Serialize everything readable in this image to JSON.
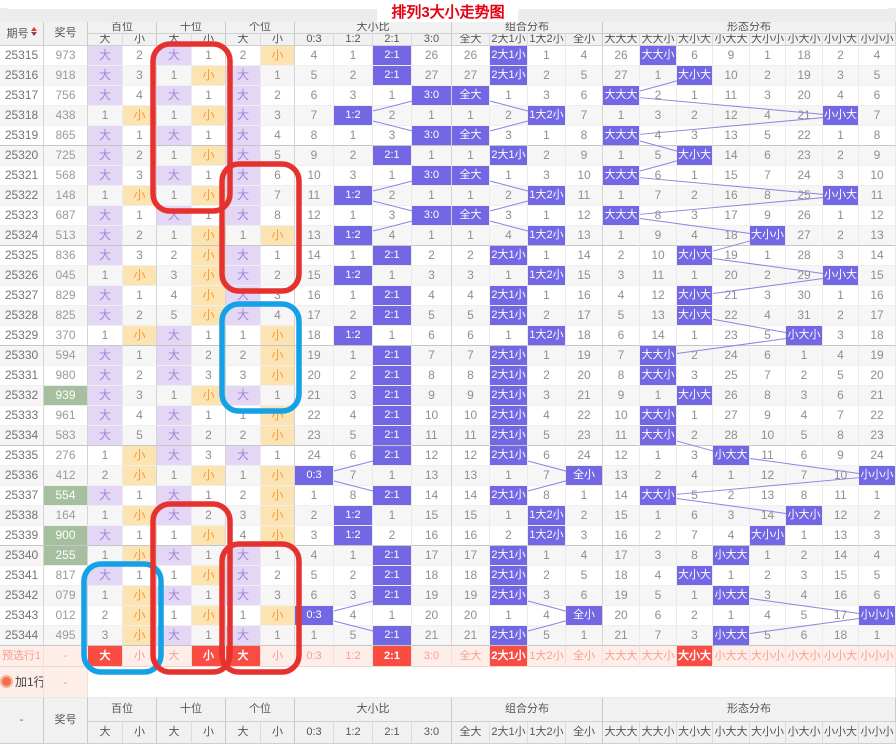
{
  "title": "排列3大小走势图",
  "table": {
    "corner_label": "期号",
    "number_label": "奖号",
    "footer_corner_label": "-",
    "groups": [
      {
        "label": "百位",
        "span": 2
      },
      {
        "label": "十位",
        "span": 2
      },
      {
        "label": "个位",
        "span": 2
      },
      {
        "label": "大小比",
        "span": 4
      },
      {
        "label": "组合分布",
        "span": 4
      },
      {
        "label": "形态分布",
        "span": 8
      }
    ],
    "sub_columns": [
      "大",
      "小",
      "大",
      "小",
      "大",
      "小",
      "0:3",
      "1:2",
      "2:1",
      "3:0",
      "全大",
      "2大1小",
      "1大2小",
      "全小",
      "大大大",
      "大大小",
      "大小大",
      "小大大",
      "大小小",
      "小大小",
      "小小大",
      "小小小"
    ],
    "rows": [
      {
        "issue": "25315",
        "number": "973",
        "green": false,
        "cells": [
          "大",
          "2",
          "大",
          "1",
          "2",
          "小",
          "4",
          "1",
          "2:1",
          "26",
          "26",
          "2大1小",
          "1",
          "4",
          "26",
          "大大小",
          "6",
          "9",
          "1",
          "18",
          "2",
          "4"
        ]
      },
      {
        "issue": "25316",
        "number": "918",
        "green": false,
        "cells": [
          "大",
          "3",
          "1",
          "小",
          "大",
          "1",
          "5",
          "2",
          "2:1",
          "27",
          "27",
          "2大1小",
          "2",
          "5",
          "27",
          "1",
          "大小大",
          "10",
          "2",
          "19",
          "3",
          "5"
        ]
      },
      {
        "issue": "25317",
        "number": "756",
        "green": false,
        "cells": [
          "大",
          "4",
          "大",
          "1",
          "大",
          "2",
          "6",
          "3",
          "1",
          "3:0",
          "全大",
          "1",
          "3",
          "6",
          "大大大",
          "2",
          "1",
          "11",
          "3",
          "20",
          "4",
          "6"
        ]
      },
      {
        "issue": "25318",
        "number": "438",
        "green": false,
        "cells": [
          "1",
          "小",
          "1",
          "小",
          "大",
          "3",
          "7",
          "1:2",
          "2",
          "1",
          "1",
          "2",
          "1大2小",
          "7",
          "1",
          "3",
          "2",
          "12",
          "4",
          "21",
          "小小大",
          "7"
        ]
      },
      {
        "issue": "25319",
        "number": "865",
        "green": false,
        "cells": [
          "大",
          "1",
          "大",
          "1",
          "大",
          "4",
          "8",
          "1",
          "3",
          "3:0",
          "全大",
          "3",
          "1",
          "8",
          "大大大",
          "4",
          "3",
          "13",
          "5",
          "22",
          "1",
          "8"
        ]
      },
      {
        "issue": "25320",
        "number": "725",
        "green": false,
        "cells": [
          "大",
          "2",
          "1",
          "小",
          "大",
          "5",
          "9",
          "2",
          "2:1",
          "1",
          "1",
          "2大1小",
          "2",
          "9",
          "1",
          "5",
          "大小大",
          "14",
          "6",
          "23",
          "2",
          "9"
        ]
      },
      {
        "issue": "25321",
        "number": "568",
        "green": false,
        "cells": [
          "大",
          "3",
          "大",
          "1",
          "大",
          "6",
          "10",
          "3",
          "1",
          "3:0",
          "全大",
          "1",
          "3",
          "10",
          "大大大",
          "6",
          "1",
          "15",
          "7",
          "24",
          "3",
          "10"
        ]
      },
      {
        "issue": "25322",
        "number": "148",
        "green": false,
        "cells": [
          "1",
          "小",
          "1",
          "小",
          "大",
          "7",
          "11",
          "1:2",
          "2",
          "1",
          "1",
          "2",
          "1大2小",
          "11",
          "1",
          "7",
          "2",
          "16",
          "8",
          "25",
          "小小大",
          "11"
        ]
      },
      {
        "issue": "25323",
        "number": "687",
        "green": false,
        "cells": [
          "大",
          "1",
          "大",
          "1",
          "大",
          "8",
          "12",
          "1",
          "3",
          "3:0",
          "全大",
          "3",
          "1",
          "12",
          "大大大",
          "8",
          "3",
          "17",
          "9",
          "26",
          "1",
          "12"
        ]
      },
      {
        "issue": "25324",
        "number": "513",
        "green": false,
        "cells": [
          "大",
          "2",
          "1",
          "小",
          "1",
          "小",
          "13",
          "1:2",
          "4",
          "1",
          "1",
          "4",
          "1大2小",
          "13",
          "1",
          "9",
          "4",
          "18",
          "大小小",
          "27",
          "2",
          "13"
        ]
      },
      {
        "issue": "25325",
        "number": "836",
        "green": false,
        "cells": [
          "大",
          "3",
          "2",
          "小",
          "大",
          "1",
          "14",
          "1",
          "2:1",
          "2",
          "2",
          "2大1小",
          "1",
          "14",
          "2",
          "10",
          "大小大",
          "19",
          "1",
          "28",
          "3",
          "14"
        ]
      },
      {
        "issue": "25326",
        "number": "045",
        "green": false,
        "cells": [
          "1",
          "小",
          "3",
          "小",
          "大",
          "2",
          "15",
          "1:2",
          "1",
          "3",
          "3",
          "1",
          "1大2小",
          "15",
          "3",
          "11",
          "1",
          "20",
          "2",
          "29",
          "小小大",
          "15"
        ]
      },
      {
        "issue": "25327",
        "number": "829",
        "green": false,
        "cells": [
          "大",
          "1",
          "4",
          "小",
          "大",
          "3",
          "16",
          "1",
          "2:1",
          "4",
          "4",
          "2大1小",
          "1",
          "16",
          "4",
          "12",
          "大小大",
          "21",
          "3",
          "30",
          "1",
          "16"
        ]
      },
      {
        "issue": "25328",
        "number": "825",
        "green": false,
        "cells": [
          "大",
          "2",
          "5",
          "小",
          "大",
          "4",
          "17",
          "2",
          "2:1",
          "5",
          "5",
          "2大1小",
          "2",
          "17",
          "5",
          "13",
          "大小大",
          "22",
          "4",
          "31",
          "2",
          "17"
        ]
      },
      {
        "issue": "25329",
        "number": "370",
        "green": false,
        "cells": [
          "1",
          "小",
          "大",
          "1",
          "1",
          "小",
          "18",
          "1:2",
          "1",
          "6",
          "6",
          "1",
          "1大2小",
          "18",
          "6",
          "14",
          "1",
          "23",
          "5",
          "小大小",
          "3",
          "18"
        ]
      },
      {
        "issue": "25330",
        "number": "594",
        "green": false,
        "cells": [
          "大",
          "1",
          "大",
          "2",
          "2",
          "小",
          "19",
          "1",
          "2:1",
          "7",
          "7",
          "2大1小",
          "1",
          "19",
          "7",
          "大大小",
          "2",
          "24",
          "6",
          "1",
          "4",
          "19"
        ]
      },
      {
        "issue": "25331",
        "number": "980",
        "green": false,
        "cells": [
          "大",
          "2",
          "大",
          "3",
          "3",
          "小",
          "20",
          "2",
          "2:1",
          "8",
          "8",
          "2大1小",
          "2",
          "20",
          "8",
          "大大小",
          "3",
          "25",
          "7",
          "2",
          "5",
          "20"
        ]
      },
      {
        "issue": "25332",
        "number": "939",
        "green": true,
        "cells": [
          "大",
          "3",
          "1",
          "小",
          "大",
          "1",
          "21",
          "3",
          "2:1",
          "9",
          "9",
          "2大1小",
          "3",
          "21",
          "9",
          "1",
          "大小大",
          "26",
          "8",
          "3",
          "6",
          "21"
        ]
      },
      {
        "issue": "25333",
        "number": "961",
        "green": false,
        "cells": [
          "大",
          "4",
          "大",
          "1",
          "1",
          "小",
          "22",
          "4",
          "2:1",
          "10",
          "10",
          "2大1小",
          "4",
          "22",
          "10",
          "大大小",
          "1",
          "27",
          "9",
          "4",
          "7",
          "22"
        ]
      },
      {
        "issue": "25334",
        "number": "583",
        "green": false,
        "cells": [
          "大",
          "5",
          "大",
          "2",
          "2",
          "小",
          "23",
          "5",
          "2:1",
          "11",
          "11",
          "2大1小",
          "5",
          "23",
          "11",
          "大大小",
          "2",
          "28",
          "10",
          "5",
          "8",
          "23"
        ]
      },
      {
        "issue": "25335",
        "number": "276",
        "green": false,
        "cells": [
          "1",
          "小",
          "大",
          "3",
          "大",
          "1",
          "24",
          "6",
          "2:1",
          "12",
          "12",
          "2大1小",
          "6",
          "24",
          "12",
          "1",
          "3",
          "小大大",
          "11",
          "6",
          "9",
          "24"
        ]
      },
      {
        "issue": "25336",
        "number": "412",
        "green": false,
        "cells": [
          "2",
          "小",
          "1",
          "小",
          "1",
          "小",
          "0:3",
          "7",
          "1",
          "13",
          "13",
          "1",
          "7",
          "全小",
          "13",
          "2",
          "4",
          "1",
          "12",
          "7",
          "10",
          "小小小"
        ]
      },
      {
        "issue": "25337",
        "number": "554",
        "green": true,
        "cells": [
          "大",
          "1",
          "大",
          "1",
          "2",
          "小",
          "1",
          "8",
          "2:1",
          "14",
          "14",
          "2大1小",
          "8",
          "1",
          "14",
          "大大小",
          "5",
          "2",
          "13",
          "8",
          "11",
          "1"
        ]
      },
      {
        "issue": "25338",
        "number": "164",
        "green": false,
        "cells": [
          "1",
          "小",
          "大",
          "2",
          "3",
          "小",
          "2",
          "1:2",
          "1",
          "15",
          "15",
          "1",
          "1大2小",
          "2",
          "15",
          "1",
          "6",
          "3",
          "14",
          "小大小",
          "12",
          "2"
        ]
      },
      {
        "issue": "25339",
        "number": "900",
        "green": true,
        "cells": [
          "大",
          "1",
          "1",
          "小",
          "4",
          "小",
          "3",
          "1:2",
          "2",
          "16",
          "16",
          "2",
          "1大2小",
          "3",
          "16",
          "2",
          "7",
          "4",
          "大小小",
          "1",
          "13",
          "3"
        ]
      },
      {
        "issue": "25340",
        "number": "255",
        "green": true,
        "cells": [
          "1",
          "小",
          "大",
          "1",
          "大",
          "1",
          "4",
          "1",
          "2:1",
          "17",
          "17",
          "2大1小",
          "1",
          "4",
          "17",
          "3",
          "8",
          "小大大",
          "1",
          "2",
          "14",
          "4"
        ]
      },
      {
        "issue": "25341",
        "number": "817",
        "green": false,
        "cells": [
          "大",
          "1",
          "1",
          "小",
          "大",
          "2",
          "5",
          "2",
          "2:1",
          "18",
          "18",
          "2大1小",
          "2",
          "5",
          "18",
          "4",
          "大小大",
          "1",
          "2",
          "3",
          "15",
          "5"
        ]
      },
      {
        "issue": "25342",
        "number": "079",
        "green": false,
        "cells": [
          "1",
          "小",
          "大",
          "1",
          "大",
          "3",
          "6",
          "3",
          "2:1",
          "19",
          "19",
          "2大1小",
          "3",
          "6",
          "19",
          "5",
          "1",
          "小大大",
          "3",
          "4",
          "16",
          "6"
        ]
      },
      {
        "issue": "25343",
        "number": "012",
        "green": false,
        "cells": [
          "2",
          "小",
          "1",
          "小",
          "1",
          "小",
          "0:3",
          "4",
          "1",
          "20",
          "20",
          "1",
          "4",
          "全小",
          "20",
          "6",
          "2",
          "1",
          "4",
          "5",
          "17",
          "小小小"
        ]
      },
      {
        "issue": "25344",
        "number": "495",
        "green": false,
        "cells": [
          "3",
          "小",
          "大",
          "1",
          "大",
          "1",
          "1",
          "5",
          "2:1",
          "21",
          "21",
          "2大1小",
          "5",
          "1",
          "21",
          "7",
          "3",
          "小大大",
          "5",
          "6",
          "18",
          "1"
        ]
      }
    ],
    "preselect_row": {
      "label": "预选行1",
      "number": "-",
      "cells": [
        "大",
        "小",
        "大",
        "小",
        "大",
        "小",
        "0:3",
        "1:2",
        "2:1",
        "3:0",
        "全大",
        "2大1小",
        "1大2小",
        "全小",
        "大大大",
        "大大小",
        "大小大",
        "小大大",
        "大小小",
        "小大小",
        "小小大",
        "小小小"
      ],
      "selected": [
        0,
        3,
        4,
        8,
        11,
        16
      ]
    },
    "add_row": {
      "label": "加1行",
      "number": "-"
    }
  },
  "colors": {
    "title": "#e60012",
    "chip_big_bg": "#e4d6f5",
    "chip_big_text": "#a383d6",
    "chip_small_bg": "#fce4b2",
    "chip_small_text": "#f79b3a",
    "chip_indigo_bg": "#7367e3",
    "green_bg": "#a6bf9e",
    "preselect_bg": "#fdeeea",
    "preselect_text": "#fa9d8d",
    "preselect_selected_bg": "#f94c43",
    "trend_line": "#8d84e0",
    "annotation_red": "#e6322e",
    "annotation_blue": "#14a1e8"
  },
  "annotations": [
    {
      "color": "red",
      "row_start": 0,
      "row_end": 7,
      "col_start": 4,
      "col_end": 5
    },
    {
      "color": "red",
      "row_start": 6,
      "row_end": 11,
      "col_start": 6,
      "col_end": 7
    },
    {
      "color": "blue",
      "row_start": 13,
      "row_end": 17,
      "col_start": 6,
      "col_end": 7
    },
    {
      "color": "blue",
      "row_start": 26,
      "row_end": 30,
      "col_start": 2,
      "col_end": 3
    },
    {
      "color": "red",
      "row_start": 23,
      "row_end": 30,
      "col_start": 4,
      "col_end": 5
    },
    {
      "color": "red",
      "row_start": 25,
      "row_end": 30,
      "col_start": 6,
      "col_end": 7
    }
  ]
}
